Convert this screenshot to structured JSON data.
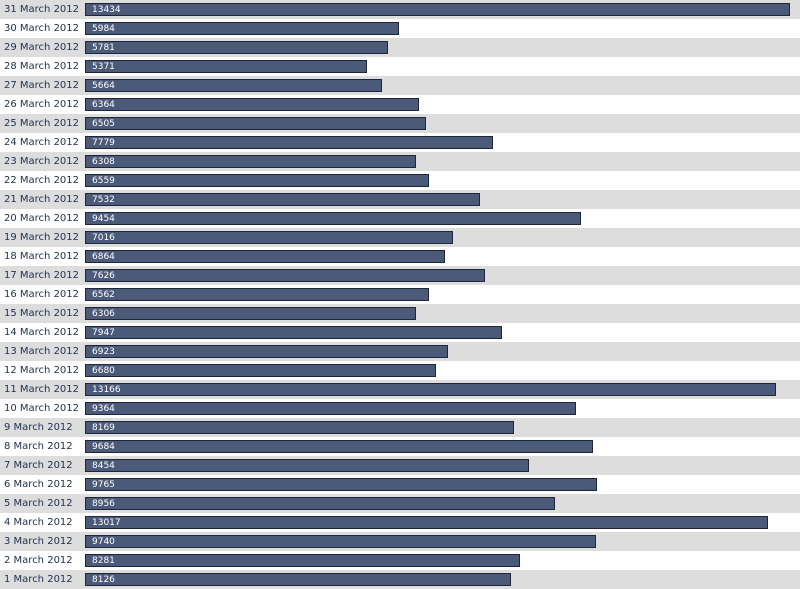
{
  "chart_data": {
    "type": "bar",
    "orientation": "horizontal",
    "grid": false,
    "legend": "none",
    "xlim": [
      0,
      13434
    ],
    "colors": {
      "bar": "#4c5a7a",
      "bar_border": "#1e2638",
      "row_alt": "#dddddd",
      "label_text": "#1f2f4f",
      "value_text": "#ffffff"
    },
    "categories": [
      "31 March 2012",
      "30 March 2012",
      "29 March 2012",
      "28 March 2012",
      "27 March 2012",
      "26 March 2012",
      "25 March 2012",
      "24 March 2012",
      "23 March 2012",
      "22 March 2012",
      "21 March 2012",
      "20 March 2012",
      "19 March 2012",
      "18 March 2012",
      "17 March 2012",
      "16 March 2012",
      "15 March 2012",
      "14 March 2012",
      "13 March 2012",
      "12 March 2012",
      "11 March 2012",
      "10 March 2012",
      "9 March 2012",
      "8 March 2012",
      "7 March 2012",
      "6 March 2012",
      "5 March 2012",
      "4 March 2012",
      "3 March 2012",
      "2 March 2012",
      "1 March 2012"
    ],
    "values": [
      13434,
      5984,
      5781,
      5371,
      5664,
      6364,
      6505,
      7779,
      6308,
      6559,
      7532,
      9454,
      7016,
      6864,
      7626,
      6562,
      6306,
      7947,
      6923,
      6680,
      13166,
      9364,
      8169,
      9684,
      8454,
      9765,
      8956,
      13017,
      9740,
      8281,
      8126
    ]
  }
}
